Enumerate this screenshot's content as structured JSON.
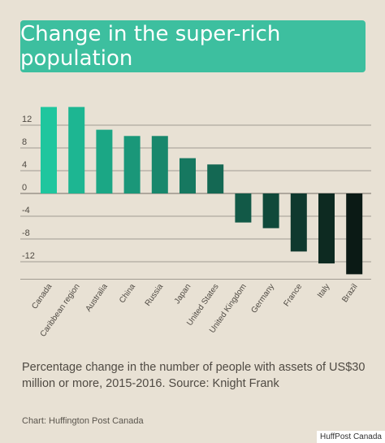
{
  "title": "Change in the super-rich population",
  "caption": "Percentage change in the number of people with assets of US$30 million or more, 2015-2016. Source: Knight Frank",
  "credit": "Chart: Huffington Post Canada",
  "watermark": "HuffPost Canada",
  "colors": {
    "background": "#e8e1d4",
    "title_box": "#3dbf9f",
    "gradient_start": "#1fc69e",
    "gradient_end": "#0b1a15",
    "gridline": "#8a857c"
  },
  "chart_data": {
    "type": "bar",
    "categories": [
      "Canada",
      "Caribbean region",
      "Australia",
      "China",
      "Russia",
      "Japan",
      "United States",
      "United Kingdom",
      "Germany",
      "France",
      "Italy",
      "Brazil"
    ],
    "values": [
      15.2,
      15.2,
      11.2,
      10.1,
      10.1,
      6.2,
      5.1,
      -5.1,
      -6.1,
      -10.2,
      -12.3,
      -14.2
    ],
    "yticks": [
      12,
      8,
      4,
      0,
      -4,
      -8,
      -12
    ],
    "ylim": [
      -14.5,
      16
    ],
    "grid": true
  }
}
